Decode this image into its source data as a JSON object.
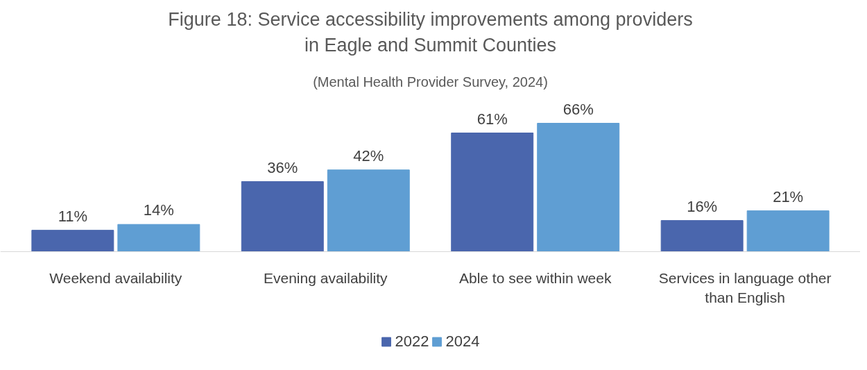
{
  "chart_data": {
    "type": "bar",
    "title": "Figure 18: Service accessibility improvements among providers in Eagle and Summit Counties",
    "subtitle": "(Mental Health Provider Survey, 2024)",
    "categories": [
      "Weekend availability",
      "Evening availability",
      "Able to see within week",
      "Services in language other than English"
    ],
    "series": [
      {
        "name": "2022",
        "color": "#4a66ad",
        "values": [
          11,
          36,
          61,
          16
        ],
        "value_labels": [
          "11%",
          "36%",
          "61%",
          "16%"
        ]
      },
      {
        "name": "2024",
        "color": "#5f9ed3",
        "values": [
          14,
          42,
          66,
          21
        ],
        "value_labels": [
          "14%",
          "42%",
          "66%",
          "21%"
        ]
      }
    ],
    "legend": "bottom"
  }
}
